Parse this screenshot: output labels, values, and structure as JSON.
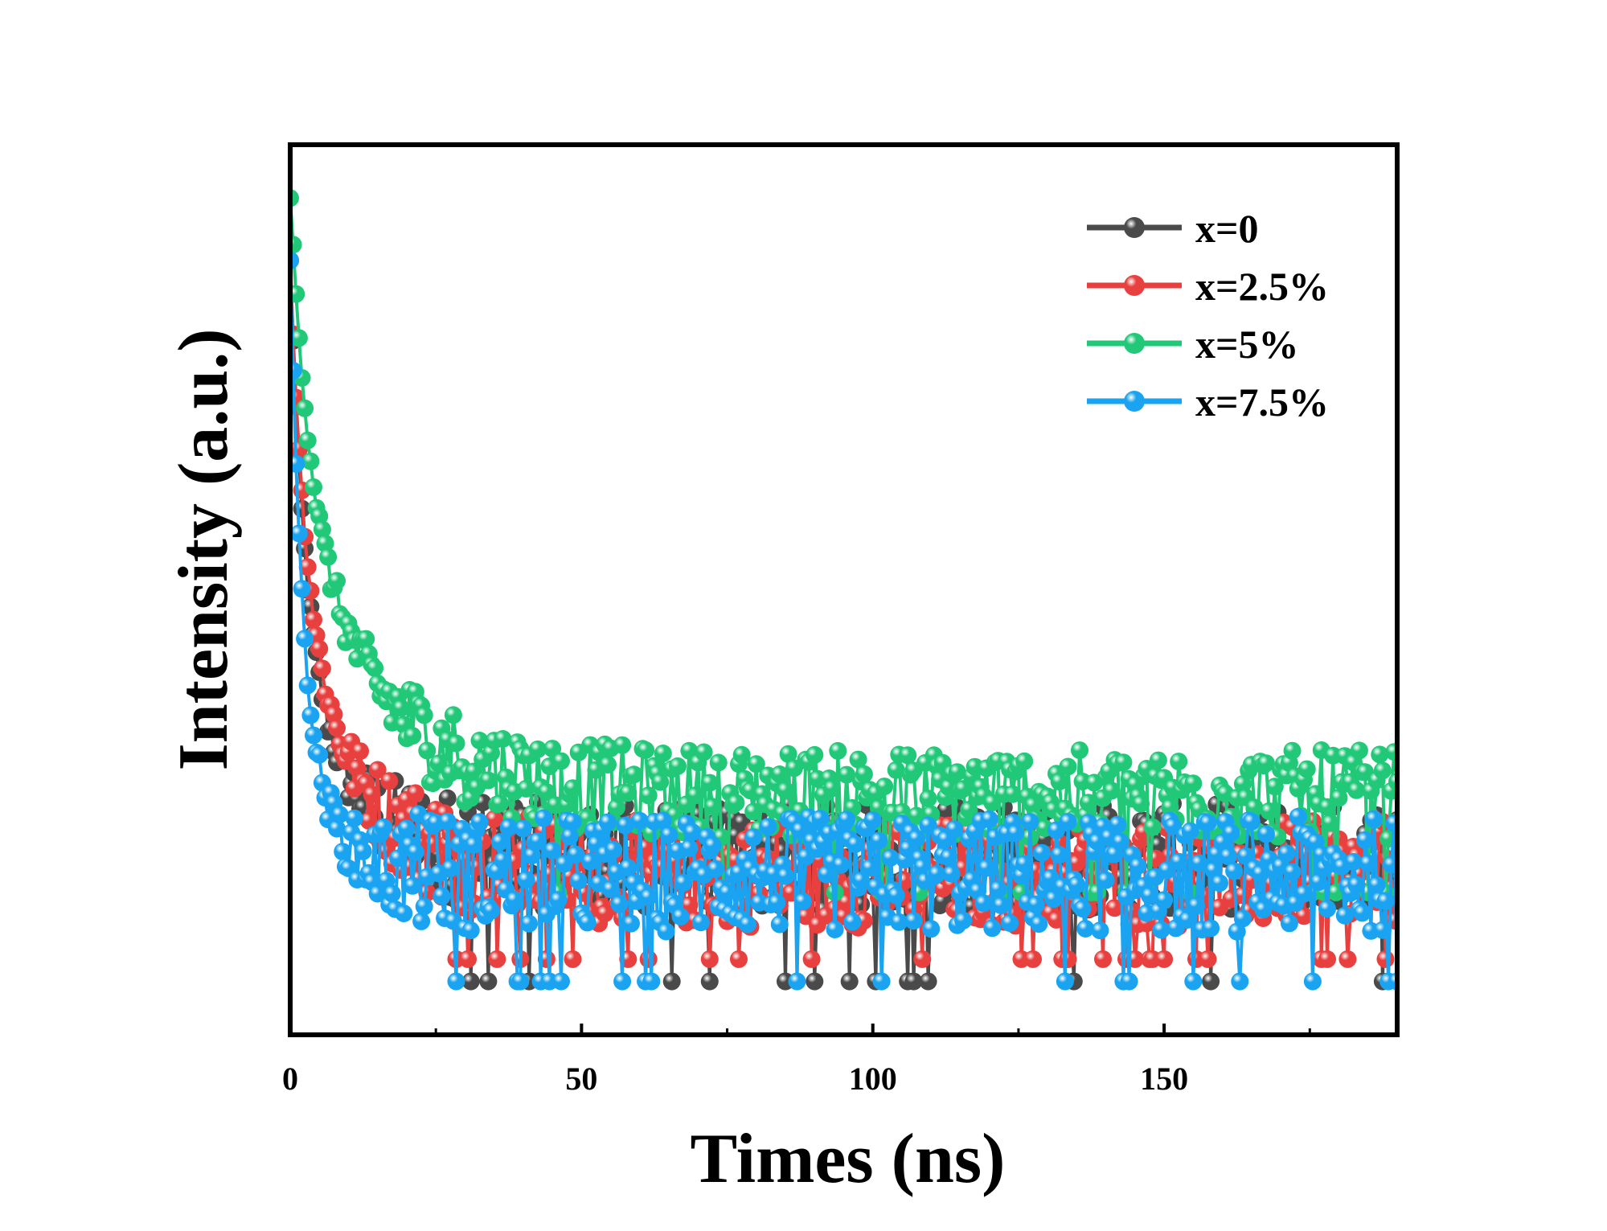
{
  "chart_data": {
    "type": "scatter",
    "title": "",
    "xlabel": "Times (ns)",
    "ylabel": "Intensity (a.u.)",
    "xlim": [
      0,
      190
    ],
    "ylim": [
      0,
      1
    ],
    "x_ticks": [
      0,
      50,
      100,
      150
    ],
    "x_minor_ticks": [
      25,
      75,
      125,
      175
    ],
    "y_ticks_shown": false,
    "grid": false,
    "legend_position": "top-right",
    "series": [
      {
        "name": "x=0",
        "color": "#4a4a4a",
        "peak": 0.87,
        "fast_amplitude": 0.42,
        "fast_tau": 2.5,
        "slow_amplitude": 0.25,
        "slow_tau": 9,
        "background": 0.2,
        "noise": 0.06,
        "floor": 0.06,
        "step": 0.5
      },
      {
        "name": "x=2.5%",
        "color": "#e8403f",
        "peak": 0.87,
        "fast_amplitude": 0.38,
        "fast_tau": 2.5,
        "slow_amplitude": 0.31,
        "slow_tau": 11,
        "background": 0.18,
        "noise": 0.06,
        "floor": 0.085,
        "step": 0.5
      },
      {
        "name": "x=5%",
        "color": "#20c878",
        "peak": 0.94,
        "fast_amplitude": 0.33,
        "fast_tau": 3,
        "slow_amplitude": 0.35,
        "slow_tau": 14,
        "background": 0.27,
        "noise": 0.05,
        "floor": 0.16,
        "step": 0.5
      },
      {
        "name": "x=7.5%",
        "color": "#1aa3f0",
        "peak": 0.87,
        "fast_amplitude": 0.45,
        "fast_tau": 1.8,
        "slow_amplitude": 0.25,
        "slow_tau": 5,
        "background": 0.18,
        "noise": 0.065,
        "floor": 0.06,
        "step": 0.5
      }
    ]
  }
}
